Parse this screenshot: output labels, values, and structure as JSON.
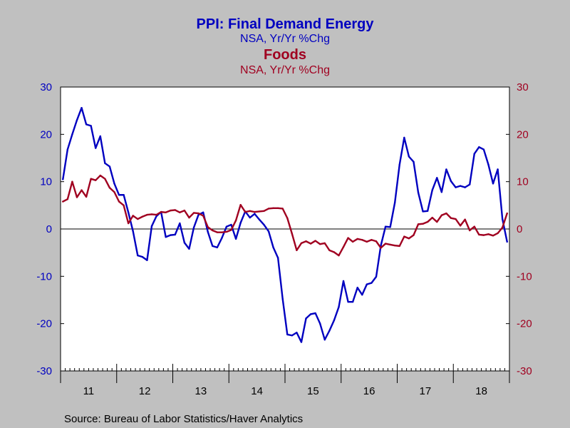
{
  "chart_data": {
    "type": "line",
    "titles": [
      {
        "text": "PPI: Final Demand Energy",
        "color": "#0000c0",
        "weight": "bold"
      },
      {
        "text": "NSA, Yr/Yr %Chg",
        "color": "#0000c0",
        "weight": "normal"
      },
      {
        "text": "Foods",
        "color": "#a00020",
        "weight": "bold"
      },
      {
        "text": "NSA, Yr/Yr %Chg",
        "color": "#a00020",
        "weight": "normal"
      }
    ],
    "source": "Source:  Bureau of Labor Statistics/Haver Analytics",
    "x_start": "2011-01",
    "x_tick_labels": [
      "11",
      "12",
      "13",
      "14",
      "15",
      "16",
      "17",
      "18"
    ],
    "y_left": {
      "min": -30,
      "max": 30,
      "ticks": [
        30,
        20,
        10,
        0,
        -10,
        -20,
        -30
      ],
      "color": "#0000c0"
    },
    "y_right": {
      "min": -30,
      "max": 30,
      "ticks": [
        30,
        20,
        10,
        0,
        -10,
        -20,
        -30
      ],
      "color": "#a00020"
    },
    "zero_line": true,
    "grid": false,
    "series": [
      {
        "color": "#0000c0",
        "axis": "left",
        "values": [
          10.5,
          16.8,
          20.0,
          23.0,
          25.6,
          22.1,
          21.8,
          17.1,
          19.6,
          13.9,
          13.2,
          9.6,
          7.2,
          7.2,
          3.5,
          -0.5,
          -5.6,
          -5.9,
          -6.6,
          0.6,
          2.7,
          3.6,
          -1.7,
          -1.3,
          -1.2,
          1.2,
          -2.9,
          -4.2,
          0.3,
          3.0,
          3.5,
          -0.6,
          -3.6,
          -3.9,
          -1.9,
          0.5,
          0.9,
          -2.1,
          1.3,
          3.7,
          2.4,
          3.2,
          2.0,
          0.9,
          -0.5,
          -3.9,
          -6.1,
          -14.8,
          -22.3,
          -22.5,
          -21.9,
          -23.9,
          -18.9,
          -18.0,
          -17.8,
          -20.0,
          -23.4,
          -21.5,
          -19.3,
          -16.5,
          -11.0,
          -15.4,
          -15.4,
          -12.4,
          -13.9,
          -11.7,
          -11.4,
          -10.1,
          -3.5,
          0.5,
          0.4,
          5.6,
          13.6,
          19.3,
          15.3,
          14.2,
          7.7,
          3.7,
          3.8,
          8.2,
          10.8,
          7.8,
          12.6,
          10.1,
          8.8,
          9.1,
          8.8,
          9.4,
          15.9,
          17.3,
          16.8,
          13.6,
          9.6,
          12.6,
          2.1,
          -2.7
        ]
      },
      {
        "color": "#a00020",
        "axis": "right",
        "values": [
          5.8,
          6.3,
          10.0,
          6.7,
          8.2,
          6.8,
          10.6,
          10.3,
          11.3,
          10.6,
          8.7,
          7.8,
          5.8,
          5.0,
          1.2,
          2.8,
          2.1,
          2.6,
          3.0,
          3.1,
          3.0,
          3.6,
          3.5,
          3.9,
          4.0,
          3.5,
          3.9,
          2.4,
          3.4,
          3.3,
          2.8,
          0.4,
          -0.3,
          -0.7,
          -0.7,
          -0.6,
          -0.2,
          1.8,
          5.1,
          3.6,
          3.8,
          3.6,
          3.7,
          3.8,
          4.3,
          4.4,
          4.4,
          4.3,
          2.3,
          -1.0,
          -4.5,
          -3.0,
          -2.6,
          -3.1,
          -2.5,
          -3.2,
          -3.0,
          -4.5,
          -4.9,
          -5.6,
          -3.8,
          -1.9,
          -2.7,
          -2.1,
          -2.3,
          -2.7,
          -2.3,
          -2.6,
          -4.0,
          -3.1,
          -3.3,
          -3.5,
          -3.6,
          -1.6,
          -2.0,
          -1.3,
          1.0,
          1.1,
          1.5,
          2.4,
          1.5,
          2.9,
          3.3,
          2.3,
          2.1,
          0.7,
          2.0,
          -0.3,
          0.5,
          -1.2,
          -1.3,
          -1.1,
          -1.4,
          -0.9,
          0.3,
          3.3
        ]
      }
    ]
  }
}
